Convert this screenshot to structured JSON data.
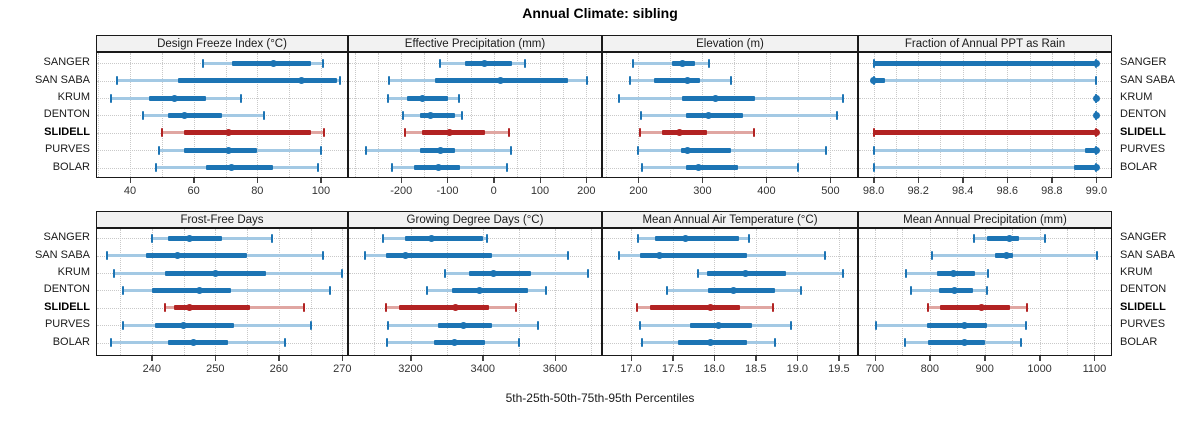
{
  "title": "Annual Climate: sibling",
  "xlabel": "5th-25th-50th-75th-95th Percentiles",
  "percentile_labels": [
    "5th",
    "25th",
    "50th",
    "75th",
    "95th"
  ],
  "stations": [
    "SANGER",
    "SAN SABA",
    "KRUM",
    "DENTON",
    "SLIDELL",
    "PURVES",
    "BOLAR"
  ],
  "highlight_station": "SLIDELL",
  "colors": {
    "series_dark": "#1C74B4",
    "series_light": "#A3C9E4",
    "highlight_dark": "#B22222",
    "highlight_light": "#E0A6A2",
    "grid": "#C9C9C9",
    "header_bg": "#F2F2F2",
    "border": "#1a1a1a"
  },
  "chart_data": [
    {
      "type": "scatter",
      "style": "percentile-whisker",
      "row": 0,
      "col": 0,
      "title": "Design Freeze Index (°C)",
      "xlim": [
        29.3,
        108.5
      ],
      "minor_step": 10,
      "ticks": {
        "values": [
          40,
          60,
          80,
          100
        ],
        "labels": [
          "40",
          "60",
          "80",
          "100"
        ]
      },
      "percentiles": [
        [
          63,
          72,
          85,
          97,
          100.5
        ],
        [
          36,
          55,
          94,
          105,
          106
        ],
        [
          34,
          46,
          54,
          64,
          75
        ],
        [
          44,
          52,
          57,
          69,
          82
        ],
        [
          50,
          57,
          71,
          97,
          101
        ],
        [
          49,
          57,
          71,
          80,
          100
        ],
        [
          48,
          64,
          72,
          85,
          99
        ]
      ]
    },
    {
      "type": "scatter",
      "style": "percentile-whisker",
      "row": 0,
      "col": 1,
      "title": "Effective Precipitation (mm)",
      "xlim": [
        -315,
        234
      ],
      "minor_step": 50,
      "ticks": {
        "values": [
          -200,
          -100,
          0,
          100,
          200
        ],
        "labels": [
          "-200",
          "-100",
          "0",
          "100",
          "200"
        ]
      },
      "percentiles": [
        [
          -116,
          -62,
          -19,
          40,
          68
        ],
        [
          -227,
          -127,
          15,
          161,
          201
        ],
        [
          -229,
          -188,
          -155,
          -98,
          -76
        ],
        [
          -197,
          -159,
          -137,
          -83,
          -69
        ],
        [
          -191,
          -155,
          -96,
          -19,
          32
        ],
        [
          -276,
          -159,
          -114,
          -83,
          37
        ],
        [
          -219,
          -173,
          -119,
          -73,
          29
        ]
      ]
    },
    {
      "type": "scatter",
      "style": "percentile-whisker",
      "row": 0,
      "col": 2,
      "title": "Elevation (m)",
      "xlim": [
        143,
        543
      ],
      "minor_step": 50,
      "ticks": {
        "values": [
          200,
          300,
          400,
          500
        ],
        "labels": [
          "200",
          "300",
          "400",
          "500"
        ]
      },
      "percentiles": [
        [
          192,
          252,
          269,
          289,
          310
        ],
        [
          186,
          225,
          277,
          296,
          345
        ],
        [
          169,
          268,
          321,
          382,
          519
        ],
        [
          204,
          274,
          309,
          364,
          510
        ],
        [
          202,
          237,
          264,
          307,
          381
        ],
        [
          199,
          267,
          277,
          345,
          493
        ],
        [
          206,
          275,
          293,
          356,
          449
        ]
      ]
    },
    {
      "type": "scatter",
      "style": "percentile-whisker",
      "row": 0,
      "col": 3,
      "title": "Fraction of Annual PPT as Rain",
      "xlim": [
        97.93,
        99.07
      ],
      "minor_step": 0.1,
      "ticks": {
        "values": [
          98.0,
          98.2,
          98.4,
          98.6,
          98.8,
          99.0
        ],
        "labels": [
          "98.0",
          "98.2",
          "98.4",
          "98.6",
          "98.8",
          "99.0"
        ]
      },
      "percentiles": [
        [
          98.0,
          98.0,
          99.0,
          99.0,
          99.0
        ],
        [
          98.0,
          98.0,
          98.0,
          98.05,
          99.0
        ],
        [
          99.0,
          99.0,
          99.0,
          99.0,
          99.0
        ],
        [
          99.0,
          99.0,
          99.0,
          99.0,
          99.0
        ],
        [
          98.0,
          98.0,
          99.0,
          99.0,
          99.0
        ],
        [
          98.0,
          98.95,
          99.0,
          99.0,
          99.0
        ],
        [
          98.0,
          98.9,
          99.0,
          99.0,
          99.0
        ]
      ]
    },
    {
      "type": "scatter",
      "style": "percentile-whisker",
      "row": 1,
      "col": 0,
      "title": "Frost-Free Days",
      "xlim": [
        231.2,
        270.9
      ],
      "minor_step": 5,
      "ticks": {
        "values": [
          240,
          250,
          260,
          270
        ],
        "labels": [
          "240",
          "250",
          "260",
          "270"
        ]
      },
      "percentiles": [
        [
          240,
          242.5,
          246,
          251,
          259
        ],
        [
          233,
          239,
          244,
          255,
          267
        ],
        [
          234,
          242,
          250,
          258,
          270
        ],
        [
          235.5,
          240,
          247.5,
          252.5,
          268
        ],
        [
          242,
          243.5,
          246,
          255.5,
          264
        ],
        [
          235.5,
          240.5,
          245,
          253,
          265
        ],
        [
          233.5,
          242.5,
          246.5,
          252,
          261
        ]
      ]
    },
    {
      "type": "scatter",
      "style": "percentile-whisker",
      "row": 1,
      "col": 1,
      "title": "Growing Degree Days (°C)",
      "xlim": [
        3027,
        3730
      ],
      "minor_step": 100,
      "ticks": {
        "values": [
          3200,
          3400,
          3600
        ],
        "labels": [
          "3200",
          "3400",
          "3600"
        ]
      },
      "percentiles": [
        [
          3125,
          3185,
          3257,
          3400,
          3411
        ],
        [
          3075,
          3133,
          3185,
          3425,
          3635
        ],
        [
          3296,
          3363,
          3429,
          3533,
          3690
        ],
        [
          3245,
          3314,
          3391,
          3526,
          3574
        ],
        [
          3133,
          3167,
          3324,
          3416,
          3492
        ],
        [
          3138,
          3276,
          3346,
          3425,
          3552
        ],
        [
          3135,
          3264,
          3322,
          3406,
          3501
        ]
      ]
    },
    {
      "type": "scatter",
      "style": "percentile-whisker",
      "row": 1,
      "col": 2,
      "title": "Mean Annual Air Temperature (°C)",
      "xlim": [
        16.65,
        19.73
      ],
      "minor_step": 0,
      "ticks": {
        "values": [
          17.0,
          17.5,
          18.0,
          18.5,
          19.0,
          19.5
        ],
        "labels": [
          "17.0",
          "17.5",
          "18.0",
          "18.5",
          "19.0",
          "19.5"
        ]
      },
      "percentiles": [
        [
          17.08,
          17.29,
          17.65,
          18.3,
          18.42
        ],
        [
          16.86,
          17.11,
          17.34,
          18.39,
          19.33
        ],
        [
          17.81,
          17.91,
          18.38,
          18.86,
          19.55
        ],
        [
          17.43,
          17.93,
          18.23,
          18.73,
          19.05
        ],
        [
          17.07,
          17.23,
          17.95,
          18.31,
          18.71
        ],
        [
          17.11,
          17.71,
          18.05,
          18.45,
          18.92
        ],
        [
          17.13,
          17.57,
          17.95,
          18.39,
          18.73
        ]
      ]
    },
    {
      "type": "scatter",
      "style": "percentile-whisker",
      "row": 1,
      "col": 3,
      "title": "Mean Annual Precipitation (mm)",
      "xlim": [
        669,
        1132
      ],
      "minor_step": 50,
      "ticks": {
        "values": [
          700,
          800,
          900,
          1000,
          1100
        ],
        "labels": [
          "700",
          "800",
          "900",
          "1000",
          "1100"
        ]
      },
      "percentiles": [
        [
          881,
          904,
          946,
          962,
          1010
        ],
        [
          803,
          919,
          940,
          952,
          1105
        ],
        [
          757,
          813,
          843,
          882,
          906
        ],
        [
          766,
          816,
          845,
          879,
          904
        ],
        [
          796,
          819,
          895,
          946,
          977
        ],
        [
          701,
          794,
          864,
          904,
          975
        ],
        [
          755,
          796,
          864,
          901,
          966
        ]
      ]
    }
  ]
}
